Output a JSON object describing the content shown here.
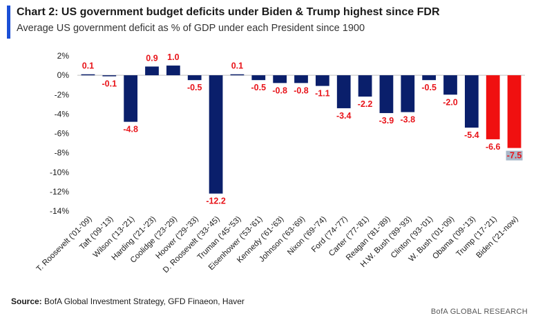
{
  "header": {
    "title": "Chart 2: US government budget deficits under Biden & Trump highest since FDR",
    "subtitle": "Average US government deficit as % of GDP under each President since 1900"
  },
  "footer": {
    "source_label": "Source:",
    "source_text": " BofA Global Investment Strategy, GFD Finaeon, Haver",
    "brand": "BofA GLOBAL RESEARCH"
  },
  "colors": {
    "navy": "#0a1f6b",
    "red": "#f01010",
    "label_red": "#e8141a",
    "last_label_bg": "#a9b8c9"
  },
  "chart_data": {
    "type": "bar",
    "title": "Chart 2: US government budget deficits under Biden & Trump highest since FDR",
    "subtitle": "Average US government deficit as % of GDP under each President since 1900",
    "xlabel": "",
    "ylabel": "",
    "ylim": [
      -14,
      2
    ],
    "yticks": [
      2,
      0,
      -2,
      -4,
      -6,
      -8,
      -10,
      -12,
      -14
    ],
    "ytick_labels": [
      "2%",
      "0%",
      "-2%",
      "-4%",
      "-6%",
      "-8%",
      "-10%",
      "-12%",
      "-14%"
    ],
    "grid": false,
    "legend": "none",
    "categories": [
      "T. Roosevelt ('01-'09)",
      "Taft ('09-'13)",
      "Wilson ('13-'21)",
      "Harding ('21-'23)",
      "Coolidge ('23-'29)",
      "Hoover ('29-'33)",
      "D. Roosevelt ('33-'45)",
      "Truman ('45-'53)",
      "Eisenhower ('53-'61)",
      "Kennedy ('61-'63)",
      "Johnson ('63-'69)",
      "Nixon ('69-'74)",
      "Ford ('74-'77)",
      "Carter ('77-'81)",
      "Reagan ('81-'89)",
      "H.W. Bush ('89-'93)",
      "Clinton ('93-'01)",
      "W. Bush ('01-'09)",
      "Obama ('09-'13)",
      "Trump ('17-'21)",
      "Biden ('21-now)"
    ],
    "values": [
      0.1,
      -0.1,
      -4.8,
      0.9,
      1.0,
      -0.5,
      -12.2,
      0.1,
      -0.5,
      -0.8,
      -0.8,
      -1.1,
      -3.4,
      -2.2,
      -3.9,
      -3.8,
      -0.5,
      -2.0,
      -5.4,
      -6.6,
      -7.5
    ],
    "value_labels": [
      "0.1",
      "-0.1",
      "-4.8",
      "0.9",
      "1.0",
      "-0.5",
      "-12.2",
      "0.1",
      "-0.5",
      "-0.8",
      "-0.8",
      "-1.1",
      "-3.4",
      "-2.2",
      "-3.9",
      "-3.8",
      "-0.5",
      "-2.0",
      "-5.4",
      "-6.6",
      "-7.5"
    ],
    "highlight": [
      false,
      false,
      false,
      false,
      false,
      false,
      false,
      false,
      false,
      false,
      false,
      false,
      false,
      false,
      false,
      false,
      false,
      false,
      false,
      true,
      true
    ]
  }
}
